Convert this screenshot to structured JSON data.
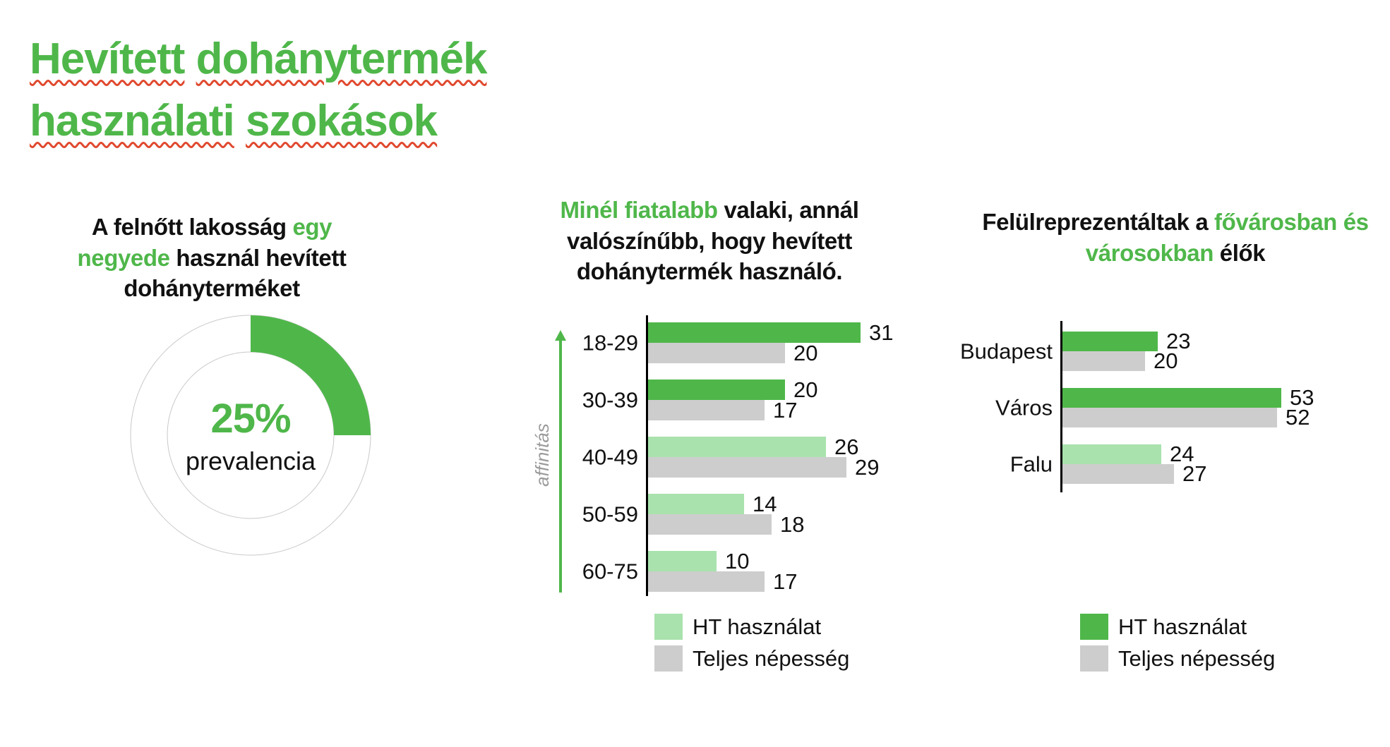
{
  "page_title": {
    "lines": [
      "Hevített dohánytermék",
      "használati szokások"
    ]
  },
  "colors": {
    "green_dark": "#4FB74A",
    "green_light": "#A9E2AD",
    "gray_bar": "#CDCDCD",
    "text": "#111111",
    "squiggle_red": "#E0492F",
    "axis_label_gray": "#9B9B9B",
    "ring_outline_gray": "#C9C9C9"
  },
  "left": {
    "heading_segments": [
      {
        "text": "A felnőtt lakosság ",
        "green": false
      },
      {
        "text": "egy negyede",
        "green": true
      },
      {
        "text": " használ hevített dohányterméket",
        "green": false
      }
    ]
  },
  "middle": {
    "heading_segments": [
      {
        "text": "Minél fiatalabb",
        "green": true
      },
      {
        "text": " valaki, annál valószínűbb, hogy hevített dohánytermék használó.",
        "green": false
      }
    ],
    "legend": [
      {
        "label": "HT használat",
        "swatch": "light"
      },
      {
        "label": "Teljes népesség",
        "swatch": "gray"
      }
    ]
  },
  "right": {
    "heading_segments": [
      {
        "text": "Felülreprezentáltak a ",
        "green": false
      },
      {
        "text": "fővárosban és városokban",
        "green": true
      },
      {
        "text": " élők",
        "green": false
      }
    ],
    "legend": [
      {
        "label": "HT használat",
        "swatch": "dark"
      },
      {
        "label": "Teljes népesség",
        "swatch": "gray"
      }
    ]
  },
  "chart_data": [
    {
      "type": "donut",
      "title": "A felnőtt lakosság egy negyede használ hevített dohányterméket",
      "value_pct": 25,
      "center_label": "25%",
      "center_sublabel": "prevalencia",
      "segment_color": "dark-green",
      "remainder": "white ring with thin gray outline"
    },
    {
      "type": "bar",
      "orientation": "horizontal",
      "title": "Minél fiatalabb valaki, annál valószínűbb, hogy hevített dohánytermék használó.",
      "ylabel": "affinitás",
      "ylabel_icon": "arrow-up-icon",
      "categories": [
        "18-29",
        "30-39",
        "40-49",
        "50-59",
        "60-75"
      ],
      "series": [
        {
          "name": "HT használat",
          "values": [
            31,
            20,
            26,
            14,
            10
          ]
        },
        {
          "name": "Teljes népesség",
          "values": [
            20,
            17,
            29,
            18,
            17
          ]
        }
      ],
      "ht_bar_shades": [
        "dark",
        "dark",
        "light",
        "light",
        "light"
      ],
      "xlim": [
        0,
        33
      ],
      "grid": false,
      "legend_position": "bottom"
    },
    {
      "type": "bar",
      "orientation": "horizontal",
      "title": "Felülreprezentáltak a fővárosban és városokban élők",
      "categories": [
        "Budapest",
        "Város",
        "Falu"
      ],
      "series": [
        {
          "name": "HT használat",
          "values": [
            23,
            53,
            24
          ]
        },
        {
          "name": "Teljes népesség",
          "values": [
            20,
            52,
            27
          ]
        }
      ],
      "ht_bar_shades": [
        "dark",
        "dark",
        "light"
      ],
      "xlim": [
        0,
        57
      ],
      "grid": false,
      "legend_position": "bottom"
    }
  ]
}
